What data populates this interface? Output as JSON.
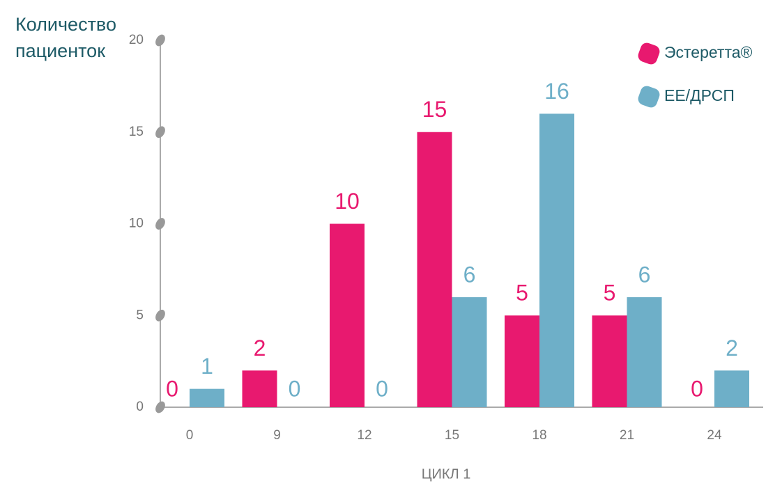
{
  "chart_data": {
    "type": "bar",
    "title": "Количество пациенток",
    "xlabel": "ЦИКЛ 1",
    "categories": [
      "0",
      "9",
      "12",
      "15",
      "18",
      "21",
      "24"
    ],
    "series": [
      {
        "name": "Эстеретта®",
        "color": "#e8196f",
        "values": [
          0,
          2,
          10,
          15,
          5,
          5,
          0
        ]
      },
      {
        "name": "ЕЕ/ДРСП",
        "color": "#6eafc8",
        "values": [
          1,
          0,
          0,
          6,
          16,
          6,
          2
        ]
      }
    ],
    "ylim": [
      0,
      20
    ],
    "yticks": [
      0,
      5,
      10,
      15,
      20
    ],
    "legend": "upper right"
  }
}
